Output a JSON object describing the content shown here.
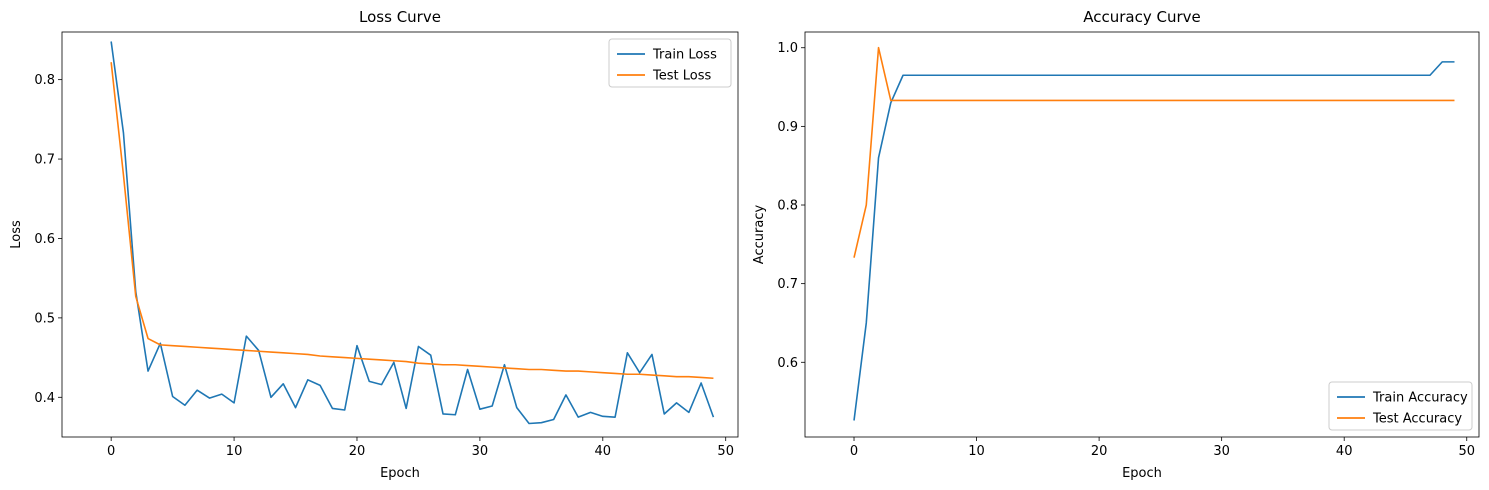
{
  "chart_data": [
    {
      "type": "line",
      "title": "Loss Curve",
      "xlabel": "Epoch",
      "ylabel": "Loss",
      "xlim": [
        -4,
        51
      ],
      "ylim": [
        0.35,
        0.86
      ],
      "xticks": [
        0,
        10,
        20,
        30,
        40,
        50
      ],
      "yticks": [
        0.4,
        0.5,
        0.6,
        0.7,
        0.8
      ],
      "legend": "top-right",
      "grid": false,
      "x": [
        0,
        1,
        2,
        3,
        4,
        5,
        6,
        7,
        8,
        9,
        10,
        11,
        12,
        13,
        14,
        15,
        16,
        17,
        18,
        19,
        20,
        21,
        22,
        23,
        24,
        25,
        26,
        27,
        28,
        29,
        30,
        31,
        32,
        33,
        34,
        35,
        36,
        37,
        38,
        39,
        40,
        41,
        42,
        43,
        44,
        45,
        46,
        47,
        48,
        49
      ],
      "series": [
        {
          "name": "Train Loss",
          "color": "#1f77b4",
          "values": [
            0.848,
            0.733,
            0.533,
            0.433,
            0.468,
            0.401,
            0.39,
            0.409,
            0.399,
            0.404,
            0.393,
            0.477,
            0.459,
            0.4,
            0.417,
            0.387,
            0.422,
            0.415,
            0.386,
            0.384,
            0.465,
            0.42,
            0.416,
            0.444,
            0.386,
            0.464,
            0.453,
            0.379,
            0.378,
            0.435,
            0.385,
            0.389,
            0.441,
            0.387,
            0.367,
            0.368,
            0.372,
            0.403,
            0.375,
            0.381,
            0.376,
            0.375,
            0.456,
            0.431,
            0.454,
            0.379,
            0.393,
            0.381,
            0.418,
            0.375
          ]
        },
        {
          "name": "Test Loss",
          "color": "#ff7f0e",
          "values": [
            0.822,
            0.68,
            0.527,
            0.474,
            0.466,
            0.465,
            0.464,
            0.463,
            0.462,
            0.461,
            0.46,
            0.459,
            0.458,
            0.457,
            0.456,
            0.455,
            0.454,
            0.452,
            0.451,
            0.45,
            0.449,
            0.448,
            0.447,
            0.446,
            0.445,
            0.443,
            0.442,
            0.441,
            0.441,
            0.44,
            0.439,
            0.438,
            0.437,
            0.436,
            0.435,
            0.435,
            0.434,
            0.433,
            0.433,
            0.432,
            0.431,
            0.43,
            0.429,
            0.429,
            0.428,
            0.427,
            0.426,
            0.426,
            0.425,
            0.424
          ]
        }
      ]
    },
    {
      "type": "line",
      "title": "Accuracy Curve",
      "xlabel": "Epoch",
      "ylabel": "Accuracy",
      "xlim": [
        -4,
        51
      ],
      "ylim": [
        0.505,
        1.02
      ],
      "xticks": [
        0,
        10,
        20,
        30,
        40,
        50
      ],
      "yticks": [
        0.6,
        0.7,
        0.8,
        0.9,
        1.0
      ],
      "ytick_labels": [
        "0.6",
        "0.7",
        "0.8",
        "0.9",
        "1.0"
      ],
      "legend": "bottom-right",
      "grid": false,
      "x": [
        0,
        1,
        2,
        3,
        4,
        5,
        6,
        7,
        8,
        9,
        10,
        11,
        12,
        13,
        14,
        15,
        16,
        17,
        18,
        19,
        20,
        21,
        22,
        23,
        24,
        25,
        26,
        27,
        28,
        29,
        30,
        31,
        32,
        33,
        34,
        35,
        36,
        37,
        38,
        39,
        40,
        41,
        42,
        43,
        44,
        45,
        46,
        47,
        48,
        49
      ],
      "series": [
        {
          "name": "Train Accuracy",
          "color": "#1f77b4",
          "values": [
            0.526,
            0.65,
            0.86,
            0.93,
            0.965,
            0.965,
            0.965,
            0.965,
            0.965,
            0.965,
            0.965,
            0.965,
            0.965,
            0.965,
            0.965,
            0.965,
            0.965,
            0.965,
            0.965,
            0.965,
            0.965,
            0.965,
            0.965,
            0.965,
            0.965,
            0.965,
            0.965,
            0.965,
            0.965,
            0.965,
            0.965,
            0.965,
            0.965,
            0.965,
            0.965,
            0.965,
            0.965,
            0.965,
            0.965,
            0.965,
            0.965,
            0.965,
            0.965,
            0.965,
            0.965,
            0.965,
            0.965,
            0.965,
            0.982,
            0.982
          ]
        },
        {
          "name": "Test Accuracy",
          "color": "#ff7f0e",
          "values": [
            0.733,
            0.8,
            1.0,
            0.933,
            0.933,
            0.933,
            0.933,
            0.933,
            0.933,
            0.933,
            0.933,
            0.933,
            0.933,
            0.933,
            0.933,
            0.933,
            0.933,
            0.933,
            0.933,
            0.933,
            0.933,
            0.933,
            0.933,
            0.933,
            0.933,
            0.933,
            0.933,
            0.933,
            0.933,
            0.933,
            0.933,
            0.933,
            0.933,
            0.933,
            0.933,
            0.933,
            0.933,
            0.933,
            0.933,
            0.933,
            0.933,
            0.933,
            0.933,
            0.933,
            0.933,
            0.933,
            0.933,
            0.933,
            0.933,
            0.933
          ]
        }
      ]
    }
  ]
}
